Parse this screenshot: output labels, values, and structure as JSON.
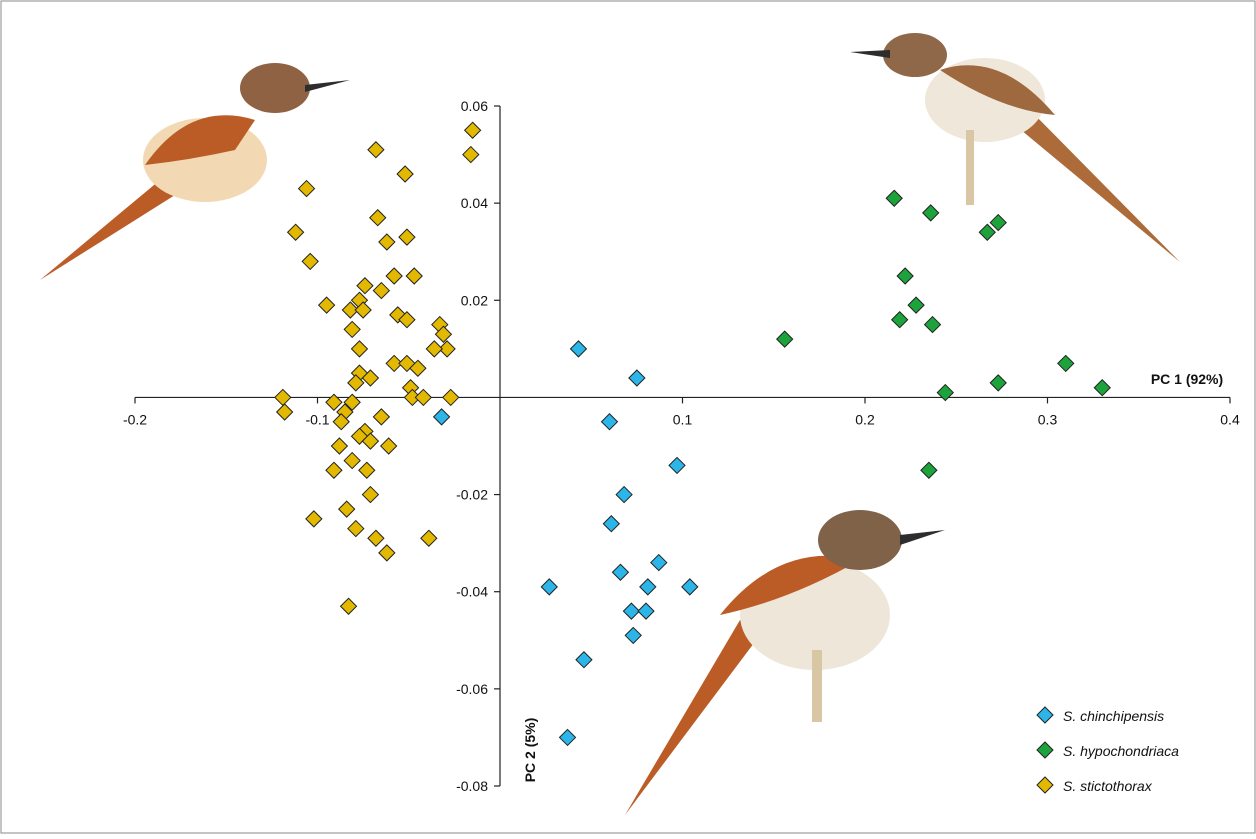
{
  "chart_data": {
    "type": "scatter",
    "x_label": "PC 1 (92%)",
    "y_label": "PC 2 (5%)",
    "xlim": [
      -0.2,
      0.4
    ],
    "ylim": [
      -0.08,
      0.06
    ],
    "xticks": [
      -0.2,
      -0.1,
      0.1,
      0.2,
      0.3,
      0.4
    ],
    "yticks": [
      -0.08,
      -0.06,
      -0.04,
      -0.02,
      0.02,
      0.04,
      0.06
    ],
    "legend": "lower right",
    "series": [
      {
        "name": "S. chinchipensis",
        "color": "#2bb5e8",
        "x": [
          0.043,
          0.075,
          -0.032,
          0.06,
          0.097,
          0.068,
          0.061,
          0.027,
          0.066,
          0.087,
          0.081,
          0.104,
          0.072,
          0.08,
          0.073,
          0.046,
          0.037
        ],
        "values": [
          0.01,
          0.004,
          -0.004,
          -0.005,
          -0.014,
          -0.02,
          -0.026,
          -0.039,
          -0.036,
          -0.034,
          -0.039,
          -0.039,
          -0.044,
          -0.044,
          -0.049,
          -0.054,
          -0.07
        ]
      },
      {
        "name": "S. hypochondriaca",
        "color": "#1da33b",
        "x": [
          0.216,
          0.236,
          0.273,
          0.267,
          0.222,
          0.228,
          0.219,
          0.237,
          0.156,
          0.31,
          0.273,
          0.244,
          0.33,
          0.235
        ],
        "values": [
          0.041,
          0.038,
          0.036,
          0.034,
          0.025,
          0.019,
          0.016,
          0.015,
          0.012,
          0.007,
          0.003,
          0.001,
          0.002,
          -0.015
        ]
      },
      {
        "name": "S. stictothorax",
        "color": "#e2b900",
        "x": [
          -0.015,
          -0.016,
          -0.068,
          -0.052,
          -0.106,
          -0.067,
          -0.051,
          -0.062,
          -0.112,
          -0.104,
          -0.047,
          -0.058,
          -0.065,
          -0.074,
          -0.077,
          -0.082,
          -0.095,
          -0.075,
          -0.056,
          -0.051,
          -0.033,
          -0.031,
          -0.081,
          -0.077,
          -0.029,
          -0.036,
          -0.058,
          -0.051,
          -0.045,
          -0.077,
          -0.071,
          -0.079,
          -0.049,
          -0.119,
          -0.091,
          -0.048,
          -0.042,
          -0.027,
          -0.118,
          -0.081,
          -0.085,
          -0.087,
          -0.065,
          -0.074,
          -0.077,
          -0.071,
          -0.088,
          -0.061,
          -0.081,
          -0.091,
          -0.073,
          -0.071,
          -0.084,
          -0.102,
          -0.079,
          -0.068,
          -0.039,
          -0.062,
          -0.083
        ],
        "values": [
          0.055,
          0.05,
          0.051,
          0.046,
          0.043,
          0.037,
          0.033,
          0.032,
          0.034,
          0.028,
          0.025,
          0.025,
          0.022,
          0.023,
          0.02,
          0.018,
          0.019,
          0.018,
          0.017,
          0.016,
          0.015,
          0.013,
          0.014,
          0.01,
          0.01,
          0.01,
          0.007,
          0.007,
          0.006,
          0.005,
          0.004,
          0.003,
          0.002,
          0.0,
          -0.001,
          0.0,
          0.0,
          0.0,
          -0.003,
          -0.001,
          -0.003,
          -0.005,
          -0.004,
          -0.007,
          -0.008,
          -0.009,
          -0.01,
          -0.01,
          -0.013,
          -0.015,
          -0.015,
          -0.02,
          -0.023,
          -0.025,
          -0.027,
          -0.029,
          -0.029,
          -0.032,
          -0.043
        ]
      }
    ]
  }
}
